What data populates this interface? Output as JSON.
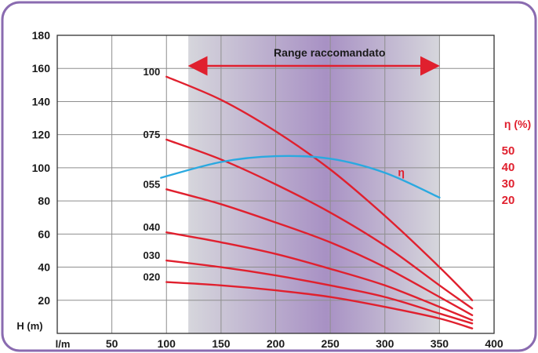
{
  "chart_data": {
    "type": "line",
    "x_unit": "l/m",
    "y_unit": "H (m)",
    "x_ticks": [
      "50",
      "100",
      "150",
      "200",
      "250",
      "300",
      "350",
      "400"
    ],
    "y_ticks": [
      "20",
      "40",
      "60",
      "80",
      "100",
      "120",
      "140",
      "160",
      "180"
    ],
    "xlim": [
      0,
      400
    ],
    "ylim": [
      0,
      180
    ],
    "grid": true,
    "recommended_range": {
      "label": "Range raccomandato",
      "x_start": 120,
      "x_end": 350
    },
    "series": [
      {
        "name": "100",
        "x": [
          100,
          150,
          200,
          250,
          300,
          350,
          380
        ],
        "y": [
          155,
          141,
          122,
          99,
          71,
          40,
          20
        ]
      },
      {
        "name": "075",
        "x": [
          100,
          150,
          200,
          250,
          300,
          350,
          380
        ],
        "y": [
          117,
          105,
          90,
          73,
          53,
          29,
          15
        ]
      },
      {
        "name": "055",
        "x": [
          100,
          150,
          200,
          250,
          300,
          350,
          380
        ],
        "y": [
          87,
          78,
          67,
          55,
          40,
          22,
          11
        ]
      },
      {
        "name": "040",
        "x": [
          100,
          150,
          200,
          250,
          300,
          350,
          380
        ],
        "y": [
          61,
          55,
          48,
          39,
          29,
          16,
          8
        ]
      },
      {
        "name": "030",
        "x": [
          100,
          150,
          200,
          250,
          300,
          350,
          380
        ],
        "y": [
          44,
          40,
          35,
          29,
          22,
          12,
          6
        ]
      },
      {
        "name": "020",
        "x": [
          100,
          150,
          200,
          250,
          300,
          350,
          380
        ],
        "y": [
          31,
          29,
          26,
          22,
          16,
          9,
          3
        ]
      }
    ],
    "efficiency": {
      "name": "η",
      "axis_title": "η (%)",
      "axis_ticks": [
        "50",
        "40",
        "30",
        "20"
      ],
      "x": [
        95,
        150,
        200,
        250,
        300,
        350
      ],
      "y": [
        94,
        103.5,
        107,
        105.5,
        97,
        82
      ]
    },
    "colors": {
      "curve": "#e0202e",
      "efficiency": "#2aa9e0",
      "range_arrow": "#e0202e",
      "frame": "#8a6bb0",
      "band_edge": "#d6d6dc",
      "band_center": "#a891c4"
    }
  }
}
